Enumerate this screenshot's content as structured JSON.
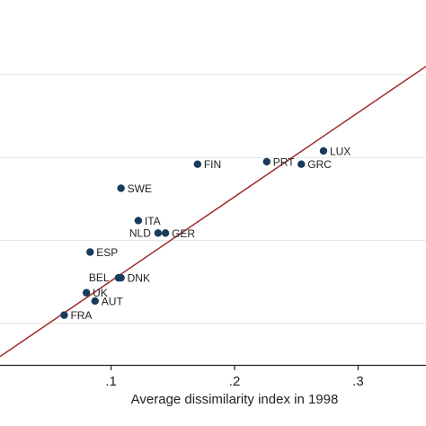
{
  "chart_data": {
    "type": "scatter",
    "title": "",
    "xlabel": "Average dissimilarity index in 1998",
    "ylabel": "",
    "x_ticks": [
      {
        "value": 0.1,
        "label": ".1"
      },
      {
        "value": 0.2,
        "label": ".2"
      },
      {
        "value": 0.3,
        "label": ".3"
      }
    ],
    "xlim": [
      0.01,
      0.355
    ],
    "ylim": [
      0.0,
      0.44
    ],
    "y_gridlines": [
      0.05,
      0.15,
      0.25,
      0.35,
      0.45
    ],
    "grid": true,
    "colors": {
      "point": "#1a3a5c",
      "fit_line": "#a02c2c",
      "grid": "#e4e4e4",
      "axis": "#222222"
    },
    "fit_line": {
      "x": [
        0.01,
        0.355
      ],
      "y": [
        0.01,
        0.36
      ]
    },
    "points": [
      {
        "label": "LUX",
        "x": 0.272,
        "y": 0.258
      },
      {
        "label": "PRT",
        "x": 0.226,
        "y": 0.245
      },
      {
        "label": "GRC",
        "x": 0.254,
        "y": 0.242
      },
      {
        "label": "FIN",
        "x": 0.17,
        "y": 0.242
      },
      {
        "label": "SWE",
        "x": 0.108,
        "y": 0.213
      },
      {
        "label": "ITA",
        "x": 0.122,
        "y": 0.174
      },
      {
        "label": "NLD",
        "x": 0.138,
        "y": 0.159
      },
      {
        "label": "GER",
        "x": 0.144,
        "y": 0.159
      },
      {
        "label": "ESP",
        "x": 0.083,
        "y": 0.136
      },
      {
        "label": "BEL",
        "x": 0.106,
        "y": 0.105
      },
      {
        "label": "DNK",
        "x": 0.108,
        "y": 0.105
      },
      {
        "label": "UK",
        "x": 0.08,
        "y": 0.087
      },
      {
        "label": "AUT",
        "x": 0.087,
        "y": 0.077
      },
      {
        "label": "FRA",
        "x": 0.062,
        "y": 0.06
      }
    ]
  }
}
